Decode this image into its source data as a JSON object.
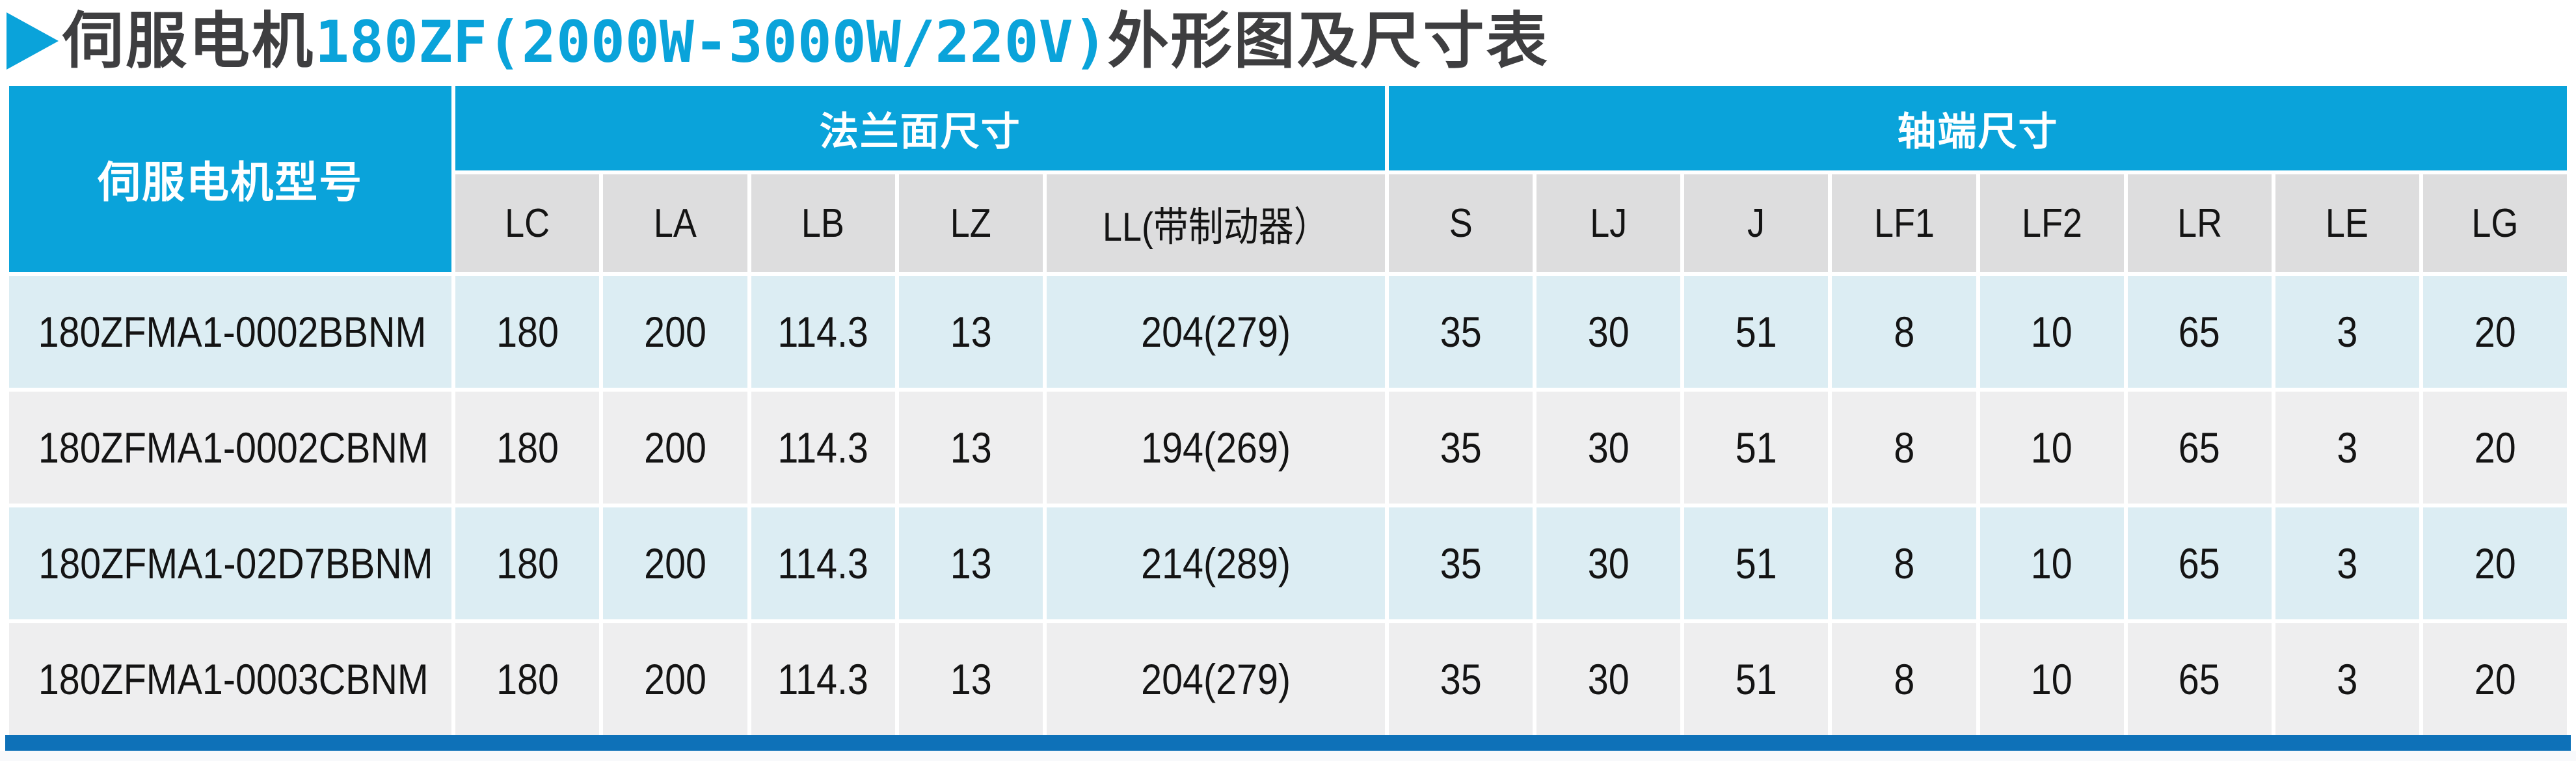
{
  "colors": {
    "accent_cyan": "#0AA3DA",
    "accent_dark_blue": "#0E71B8",
    "title_text": "#3E3E40",
    "header_text": "#FFFFFF",
    "subheader_bg": "#DDDDDE",
    "row_alt_blue": "#DCEDF3",
    "row_alt_gray": "#EEEEEF",
    "cell_text": "#141414"
  },
  "title": {
    "marker_icon": "play-triangle-icon",
    "part1": "伺服电机",
    "part2": "180ZF(2000W-3000W/220V)",
    "part3": "外形图及尺寸表"
  },
  "table": {
    "corner_header": "伺服电机型号",
    "group_headers": [
      {
        "label": "法兰面尺寸",
        "colspan": 5
      },
      {
        "label": "轴端尺寸",
        "colspan": 8
      }
    ],
    "sub_headers": [
      "LC",
      "LA",
      "LB",
      "LZ",
      "LL(带制动器）",
      "S",
      "LJ",
      "J",
      "LF1",
      "LF2",
      "LR",
      "LE",
      "LG"
    ],
    "rows": [
      {
        "model": "180ZFMA1-0002BBNM",
        "values": [
          "180",
          "200",
          "114.3",
          "13",
          "204(279)",
          "35",
          "30",
          "51",
          "8",
          "10",
          "65",
          "3",
          "20"
        ]
      },
      {
        "model": "180ZFMA1-0002CBNM",
        "values": [
          "180",
          "200",
          "114.3",
          "13",
          "194(269)",
          "35",
          "30",
          "51",
          "8",
          "10",
          "65",
          "3",
          "20"
        ]
      },
      {
        "model": "180ZFMA1-02D7BBNM",
        "values": [
          "180",
          "200",
          "114.3",
          "13",
          "214(289)",
          "35",
          "30",
          "51",
          "8",
          "10",
          "65",
          "3",
          "20"
        ]
      },
      {
        "model": "180ZFMA1-0003CBNM",
        "values": [
          "180",
          "200",
          "114.3",
          "13",
          "204(279)",
          "35",
          "30",
          "51",
          "8",
          "10",
          "65",
          "3",
          "20"
        ]
      }
    ]
  }
}
